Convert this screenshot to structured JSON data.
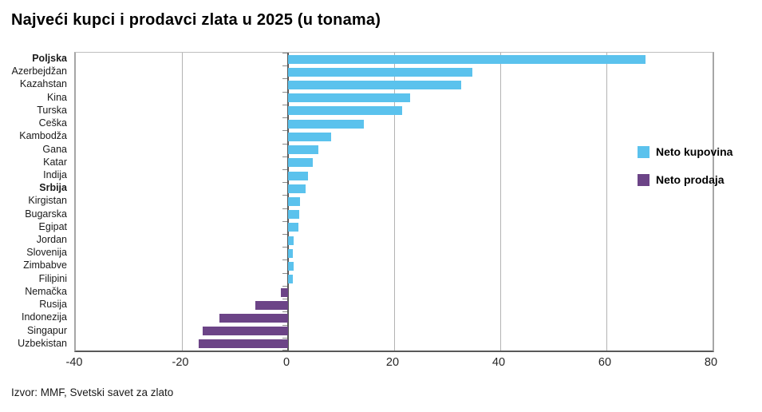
{
  "title": "Najveći kupci i prodavci zlata u 2025 (u tonama)",
  "source": "Izvor: MMF, Svetski savet za zlato",
  "legend": {
    "items": [
      {
        "label": "Neto kupovina",
        "color": "#5BC2ED"
      },
      {
        "label": "Neto prodaja",
        "color": "#6C4487"
      }
    ]
  },
  "colors": {
    "positive": "#5BC2ED",
    "negative": "#6C4487",
    "gridline": "#b3b3b3",
    "zero_axis": "#595959",
    "plot_border": "#a6a6a6",
    "text": "#1a1a1a"
  },
  "chart_data": {
    "type": "bar",
    "orientation": "horizontal",
    "title": "Najveći kupci i prodavci zlata u 2025 (u tonama)",
    "unit": "tona",
    "categories": [
      "Poljska",
      "Azerbejdžan",
      "Kazahstan",
      "Kina",
      "Turska",
      "Ceška",
      "Kambodža",
      "Gana",
      "Katar",
      "Indija",
      "Srbija",
      "Kirgistan",
      "Bugarska",
      "Egipat",
      "Jordan",
      "Slovenija",
      "Zimbabve",
      "Filipini",
      "Nemačka",
      "Rusija",
      "Indonezija",
      "Singapur",
      "Uzbekistan"
    ],
    "values": [
      67.3,
      34.7,
      32.6,
      23,
      21.5,
      14.3,
      8.1,
      5.7,
      4.6,
      3.8,
      3.3,
      2.3,
      2.1,
      1.9,
      1.0,
      0.9,
      1.0,
      0.9,
      -1.4,
      -6.2,
      -12.9,
      -16.1,
      -16.8
    ],
    "bold_categories": [
      "Poljska",
      "Srbija"
    ],
    "series": [
      {
        "name": "Neto kupovina",
        "applies_to": "values >= 0",
        "color": "#5BC2ED"
      },
      {
        "name": "Neto prodaja",
        "applies_to": "values < 0",
        "color": "#6C4487"
      }
    ],
    "x_ticks": [
      -40,
      -20,
      0,
      20,
      40,
      60,
      80
    ],
    "xlim": [
      -40,
      80
    ],
    "grid": "vertical",
    "legend_position": "inside-upper-right"
  }
}
